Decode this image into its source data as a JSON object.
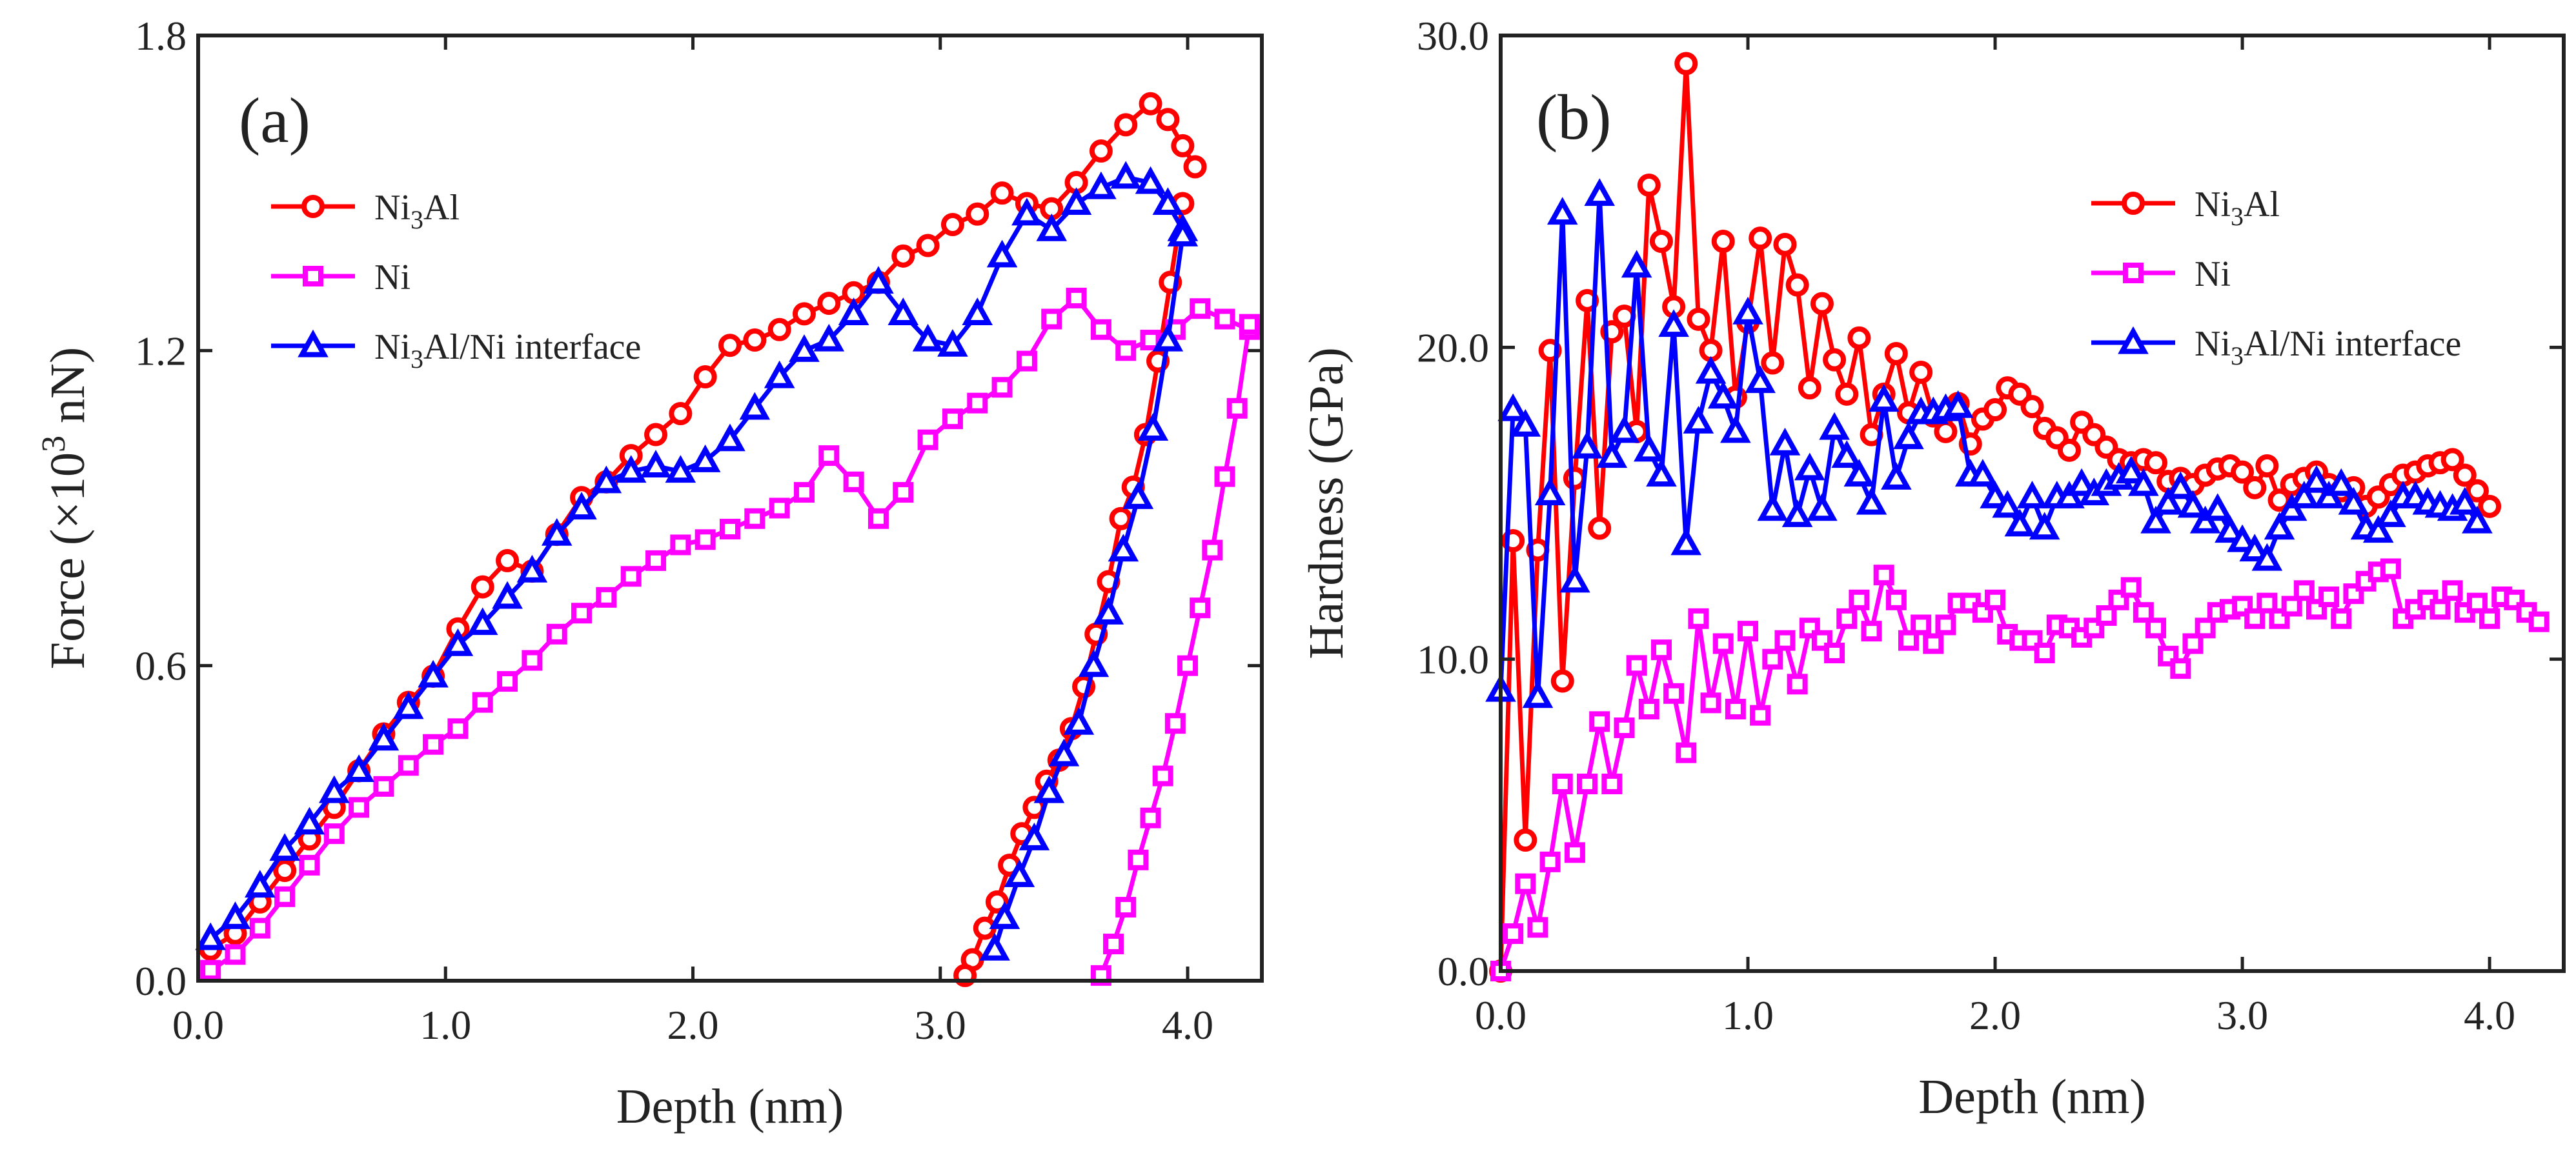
{
  "chart_data": [
    {
      "type": "line",
      "panel_label": "(a)",
      "xlabel": "Depth (nm)",
      "ylabel": {
        "prefix": "Force (×10",
        "exponent": "3",
        "suffix": " nN)"
      },
      "xlim": [
        0,
        4.3
      ],
      "ylim": [
        0,
        1.8
      ],
      "xticks": [
        0,
        1,
        2,
        3,
        4
      ],
      "xtick_labels": [
        "0.0",
        "1.0",
        "2.0",
        "3.0",
        "4.0"
      ],
      "yticks": [
        0,
        0.6,
        1.2,
        1.8
      ],
      "ytick_labels": [
        "0.0",
        "0.6",
        "1.2",
        "1.8"
      ],
      "legend_position": "top-left",
      "series": [
        {
          "name": "Ni3Al",
          "legend": {
            "base": "Ni",
            "sub": "3",
            "rest": "Al"
          },
          "color": "#ff0000",
          "marker": "circle",
          "loading": {
            "x": [
              0.05,
              0.15,
              0.25,
              0.35,
              0.45,
              0.55,
              0.65,
              0.75,
              0.85,
              0.95,
              1.05,
              1.15,
              1.25,
              1.35,
              1.45,
              1.55,
              1.65,
              1.75,
              1.85,
              1.95,
              2.05,
              2.15,
              2.25,
              2.35,
              2.45,
              2.55,
              2.65,
              2.75,
              2.85,
              2.95,
              3.05,
              3.15,
              3.25,
              3.35,
              3.45,
              3.55,
              3.65,
              3.75,
              3.85,
              3.92,
              3.98,
              4.03
            ],
            "y": [
              0.06,
              0.09,
              0.15,
              0.21,
              0.27,
              0.33,
              0.4,
              0.47,
              0.53,
              0.58,
              0.67,
              0.75,
              0.8,
              0.78,
              0.85,
              0.92,
              0.95,
              1.0,
              1.04,
              1.08,
              1.15,
              1.21,
              1.22,
              1.24,
              1.27,
              1.29,
              1.31,
              1.33,
              1.38,
              1.4,
              1.44,
              1.46,
              1.5,
              1.48,
              1.47,
              1.52,
              1.58,
              1.63,
              1.67,
              1.64,
              1.59,
              1.55
            ]
          },
          "unloading": {
            "x": [
              3.98,
              3.93,
              3.88,
              3.83,
              3.78,
              3.73,
              3.68,
              3.63,
              3.58,
              3.53,
              3.48,
              3.43,
              3.38,
              3.33,
              3.28,
              3.23,
              3.18,
              3.13,
              3.1
            ],
            "y": [
              1.48,
              1.33,
              1.18,
              1.04,
              0.94,
              0.88,
              0.76,
              0.66,
              0.56,
              0.48,
              0.42,
              0.38,
              0.33,
              0.28,
              0.22,
              0.15,
              0.1,
              0.04,
              0.01
            ]
          }
        },
        {
          "name": "Ni",
          "legend": {
            "base": "Ni",
            "sub": "",
            "rest": ""
          },
          "color": "#ff00ff",
          "marker": "square",
          "loading": {
            "x": [
              0.05,
              0.15,
              0.25,
              0.35,
              0.45,
              0.55,
              0.65,
              0.75,
              0.85,
              0.95,
              1.05,
              1.15,
              1.25,
              1.35,
              1.45,
              1.55,
              1.65,
              1.75,
              1.85,
              1.95,
              2.05,
              2.15,
              2.25,
              2.35,
              2.45,
              2.55,
              2.65,
              2.75,
              2.85,
              2.95,
              3.05,
              3.15,
              3.25,
              3.35,
              3.45,
              3.55,
              3.65,
              3.75,
              3.85,
              3.95,
              4.05,
              4.15,
              4.25
            ],
            "y": [
              0.02,
              0.05,
              0.1,
              0.16,
              0.22,
              0.28,
              0.33,
              0.37,
              0.41,
              0.45,
              0.48,
              0.53,
              0.57,
              0.61,
              0.66,
              0.7,
              0.73,
              0.77,
              0.8,
              0.83,
              0.84,
              0.86,
              0.88,
              0.9,
              0.93,
              1.0,
              0.95,
              0.88,
              0.93,
              1.03,
              1.07,
              1.1,
              1.13,
              1.18,
              1.26,
              1.3,
              1.24,
              1.2,
              1.22,
              1.24,
              1.28,
              1.26,
              1.24
            ]
          },
          "unloading": {
            "x": [
              4.25,
              4.2,
              4.15,
              4.1,
              4.05,
              4.0,
              3.95,
              3.9,
              3.85,
              3.8,
              3.75,
              3.7,
              3.65
            ],
            "y": [
              1.25,
              1.09,
              0.96,
              0.82,
              0.71,
              0.6,
              0.49,
              0.39,
              0.31,
              0.23,
              0.14,
              0.07,
              0.01
            ]
          }
        },
        {
          "name": "Ni3Al/Ni interface",
          "legend": {
            "base": "Ni",
            "sub": "3",
            "rest": "Al/Ni interface"
          },
          "color": "#0000ff",
          "marker": "triangle",
          "loading": {
            "x": [
              0.05,
              0.15,
              0.25,
              0.35,
              0.45,
              0.55,
              0.65,
              0.75,
              0.85,
              0.95,
              1.05,
              1.15,
              1.25,
              1.35,
              1.45,
              1.55,
              1.65,
              1.75,
              1.85,
              1.95,
              2.05,
              2.15,
              2.25,
              2.35,
              2.45,
              2.55,
              2.65,
              2.75,
              2.85,
              2.95,
              3.05,
              3.15,
              3.25,
              3.35,
              3.45,
              3.55,
              3.65,
              3.75,
              3.85,
              3.92,
              3.98
            ],
            "y": [
              0.08,
              0.12,
              0.18,
              0.25,
              0.3,
              0.36,
              0.4,
              0.46,
              0.52,
              0.58,
              0.64,
              0.68,
              0.73,
              0.78,
              0.85,
              0.9,
              0.95,
              0.97,
              0.98,
              0.97,
              0.99,
              1.03,
              1.09,
              1.15,
              1.2,
              1.22,
              1.27,
              1.33,
              1.27,
              1.22,
              1.21,
              1.27,
              1.38,
              1.46,
              1.43,
              1.48,
              1.51,
              1.53,
              1.52,
              1.48,
              1.43
            ]
          },
          "unloading": {
            "x": [
              3.98,
              3.92,
              3.86,
              3.8,
              3.74,
              3.68,
              3.62,
              3.56,
              3.5,
              3.44,
              3.38,
              3.32,
              3.26,
              3.22
            ],
            "y": [
              1.42,
              1.22,
              1.05,
              0.92,
              0.82,
              0.7,
              0.6,
              0.49,
              0.43,
              0.36,
              0.27,
              0.2,
              0.12,
              0.06
            ]
          }
        }
      ]
    },
    {
      "type": "line",
      "panel_label": "(b)",
      "xlabel": "Depth (nm)",
      "ylabel": {
        "prefix": "Hardness (GPa)",
        "exponent": "",
        "suffix": ""
      },
      "xlim": [
        0,
        4.3
      ],
      "ylim": [
        0,
        30
      ],
      "xticks": [
        0,
        1,
        2,
        3,
        4
      ],
      "xtick_labels": [
        "0.0",
        "1.0",
        "2.0",
        "3.0",
        "4.0"
      ],
      "yticks": [
        0,
        10,
        20,
        30
      ],
      "ytick_labels": [
        "0.0",
        "10.0",
        "20.0",
        "30.0"
      ],
      "legend_position": "top-right",
      "series": [
        {
          "name": "Ni3Al",
          "legend": {
            "base": "Ni",
            "sub": "3",
            "rest": "Al"
          },
          "color": "#ff0000",
          "marker": "circle",
          "x": [
            0.0,
            0.05,
            0.1,
            0.15,
            0.2,
            0.25,
            0.3,
            0.35,
            0.4,
            0.45,
            0.5,
            0.55,
            0.6,
            0.65,
            0.7,
            0.75,
            0.8,
            0.85,
            0.9,
            0.95,
            1.0,
            1.05,
            1.1,
            1.15,
            1.2,
            1.25,
            1.3,
            1.35,
            1.4,
            1.45,
            1.5,
            1.55,
            1.6,
            1.65,
            1.7,
            1.75,
            1.8,
            1.85,
            1.9,
            1.95,
            2.0,
            2.05,
            2.1,
            2.15,
            2.2,
            2.25,
            2.3,
            2.35,
            2.4,
            2.45,
            2.5,
            2.55,
            2.6,
            2.65,
            2.7,
            2.75,
            2.8,
            2.85,
            2.9,
            2.95,
            3.0,
            3.05,
            3.1,
            3.15,
            3.2,
            3.25,
            3.3,
            3.35,
            3.4,
            3.45,
            3.5,
            3.55,
            3.6,
            3.65,
            3.7,
            3.75,
            3.8,
            3.85,
            3.9,
            3.95,
            4.0
          ],
          "y": [
            0,
            13.8,
            4.2,
            13.5,
            19.9,
            9.3,
            15.8,
            21.5,
            14.2,
            20.5,
            21.0,
            17.3,
            25.2,
            23.4,
            21.3,
            29.1,
            20.9,
            19.9,
            23.4,
            18.4,
            20.8,
            23.5,
            19.5,
            23.3,
            22.0,
            18.7,
            21.4,
            19.6,
            18.5,
            20.3,
            17.2,
            18.5,
            19.8,
            17.9,
            19.2,
            17.8,
            17.3,
            18.2,
            16.9,
            17.7,
            18.0,
            18.7,
            18.5,
            18.1,
            17.4,
            17.1,
            16.7,
            17.6,
            17.2,
            16.8,
            16.4,
            16.3,
            16.4,
            16.3,
            15.7,
            15.8,
            15.6,
            15.9,
            16.1,
            16.2,
            16.0,
            15.5,
            16.2,
            15.1,
            15.6,
            15.8,
            16.0,
            15.6,
            15.4,
            15.5,
            14.9,
            15.2,
            15.6,
            15.9,
            16.0,
            16.2,
            16.3,
            16.4,
            15.9,
            15.4,
            14.9
          ]
        },
        {
          "name": "Ni",
          "legend": {
            "base": "Ni",
            "sub": "",
            "rest": ""
          },
          "color": "#ff00ff",
          "marker": "square",
          "x": [
            0.0,
            0.05,
            0.1,
            0.15,
            0.2,
            0.25,
            0.3,
            0.35,
            0.4,
            0.45,
            0.5,
            0.55,
            0.6,
            0.65,
            0.7,
            0.75,
            0.8,
            0.85,
            0.9,
            0.95,
            1.0,
            1.05,
            1.1,
            1.15,
            1.2,
            1.25,
            1.3,
            1.35,
            1.4,
            1.45,
            1.5,
            1.55,
            1.6,
            1.65,
            1.7,
            1.75,
            1.8,
            1.85,
            1.9,
            1.95,
            2.0,
            2.05,
            2.1,
            2.15,
            2.2,
            2.25,
            2.3,
            2.35,
            2.4,
            2.45,
            2.5,
            2.55,
            2.6,
            2.65,
            2.7,
            2.75,
            2.8,
            2.85,
            2.9,
            2.95,
            3.0,
            3.05,
            3.1,
            3.15,
            3.2,
            3.25,
            3.3,
            3.35,
            3.4,
            3.45,
            3.5,
            3.55,
            3.6,
            3.65,
            3.7,
            3.75,
            3.8,
            3.85,
            3.9,
            3.95,
            4.0,
            4.05,
            4.1,
            4.15,
            4.2
          ],
          "y": [
            0,
            1.2,
            2.8,
            1.4,
            3.5,
            6.0,
            3.8,
            6.0,
            8.0,
            6.0,
            7.8,
            9.8,
            8.4,
            10.3,
            8.9,
            7.0,
            11.3,
            8.6,
            10.5,
            8.4,
            10.9,
            8.2,
            10.0,
            10.6,
            9.2,
            11.0,
            10.6,
            10.2,
            11.3,
            11.9,
            10.9,
            12.7,
            11.9,
            10.6,
            11.1,
            10.5,
            11.1,
            11.8,
            11.8,
            11.5,
            11.9,
            10.8,
            10.6,
            10.6,
            10.2,
            11.1,
            11.0,
            10.7,
            11.0,
            11.4,
            11.9,
            12.3,
            11.5,
            11.0,
            10.1,
            9.7,
            10.5,
            11.0,
            11.5,
            11.6,
            11.7,
            11.3,
            11.8,
            11.3,
            11.7,
            12.2,
            11.6,
            12.0,
            11.3,
            12.1,
            12.5,
            12.8,
            12.9,
            11.3,
            11.6,
            11.9,
            11.6,
            12.2,
            11.5,
            11.8,
            11.3,
            12.0,
            11.9,
            11.5,
            11.2
          ]
        },
        {
          "name": "Ni3Al/Ni interface",
          "legend": {
            "base": "Ni",
            "sub": "3",
            "rest": "Al/Ni interface"
          },
          "color": "#0000ff",
          "marker": "triangle",
          "x": [
            0.0,
            0.05,
            0.1,
            0.15,
            0.2,
            0.25,
            0.3,
            0.35,
            0.4,
            0.45,
            0.5,
            0.55,
            0.6,
            0.65,
            0.7,
            0.75,
            0.8,
            0.85,
            0.9,
            0.95,
            1.0,
            1.05,
            1.1,
            1.15,
            1.2,
            1.25,
            1.3,
            1.35,
            1.4,
            1.45,
            1.5,
            1.55,
            1.6,
            1.65,
            1.7,
            1.75,
            1.8,
            1.85,
            1.9,
            1.95,
            2.0,
            2.05,
            2.1,
            2.15,
            2.2,
            2.25,
            2.3,
            2.35,
            2.4,
            2.45,
            2.5,
            2.55,
            2.6,
            2.65,
            2.7,
            2.75,
            2.8,
            2.85,
            2.9,
            2.95,
            3.0,
            3.05,
            3.1,
            3.15,
            3.2,
            3.25,
            3.3,
            3.35,
            3.4,
            3.45,
            3.5,
            3.55,
            3.6,
            3.65,
            3.7,
            3.75,
            3.8,
            3.85,
            3.9,
            3.95
          ],
          "y": [
            9.0,
            18.0,
            17.5,
            8.8,
            15.3,
            24.3,
            12.5,
            16.8,
            24.9,
            16.5,
            17.3,
            22.6,
            16.7,
            15.9,
            20.7,
            13.7,
            17.6,
            19.2,
            18.4,
            17.3,
            21.1,
            18.9,
            14.8,
            16.9,
            14.6,
            16.1,
            14.8,
            17.4,
            16.5,
            15.9,
            15.0,
            18.3,
            15.8,
            17.1,
            17.9,
            17.9,
            18.0,
            18.1,
            15.9,
            15.9,
            15.2,
            14.9,
            14.3,
            15.2,
            14.2,
            15.2,
            15.2,
            15.6,
            15.3,
            15.6,
            15.8,
            16.0,
            15.6,
            14.4,
            15.0,
            15.5,
            14.9,
            14.4,
            14.8,
            14.1,
            13.8,
            13.5,
            13.2,
            14.2,
            14.8,
            15.2,
            15.7,
            15.2,
            15.6,
            15.0,
            14.2,
            14.1,
            14.6,
            15.2,
            15.2,
            15.0,
            14.9,
            14.8,
            15.0,
            14.4
          ]
        }
      ]
    }
  ]
}
